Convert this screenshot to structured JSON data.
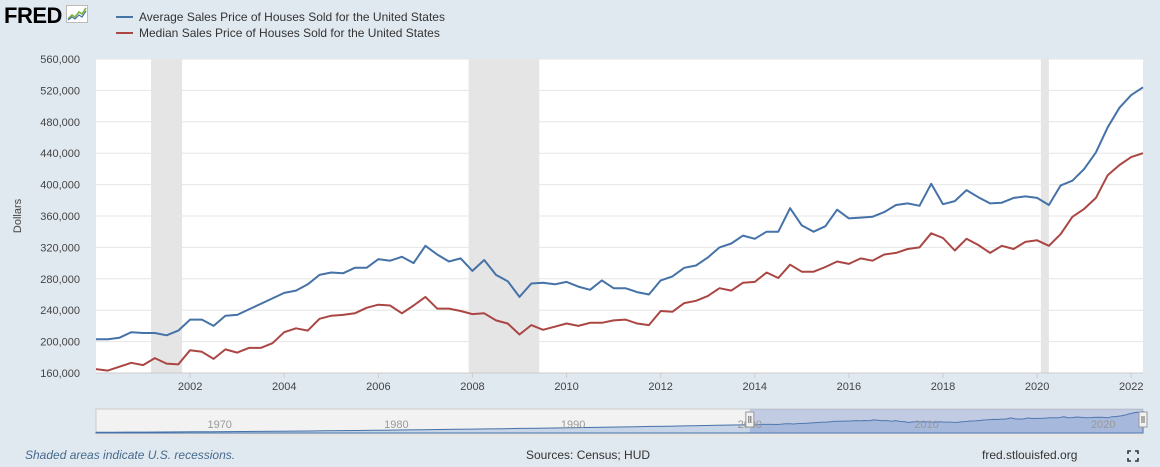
{
  "header": {
    "logo_text": "FRED",
    "logo_icon": "fred-chart-icon"
  },
  "footer": {
    "recession_note": "Shaded areas indicate U.S. recessions.",
    "sources": "Sources: Census; HUD",
    "site": "fred.stlouisfed.org",
    "fullscreen_icon": "fullscreen-icon"
  },
  "colors": {
    "average": "#4572a7",
    "median": "#aa4643",
    "recession": "#e5e5e5",
    "grid": "#e6e6e6",
    "navigator_fill": "#a6bde0",
    "navigator_line": "#4572a7"
  },
  "chart_data": {
    "type": "line",
    "ylabel": "Dollars",
    "ylim": [
      160000,
      560000
    ],
    "y_ticks": [
      160000,
      200000,
      240000,
      280000,
      320000,
      360000,
      400000,
      440000,
      480000,
      520000,
      560000
    ],
    "y_tick_labels": [
      "160,000",
      "200,000",
      "240,000",
      "280,000",
      "320,000",
      "360,000",
      "400,000",
      "440,000",
      "480,000",
      "520,000",
      "560,000"
    ],
    "xlim": [
      2000.0,
      2022.25
    ],
    "x_ticks": [
      2002,
      2004,
      2006,
      2008,
      2010,
      2012,
      2014,
      2016,
      2018,
      2020,
      2022
    ],
    "x_tick_labels": [
      "2002",
      "2004",
      "2006",
      "2008",
      "2010",
      "2012",
      "2014",
      "2016",
      "2018",
      "2020",
      "2022"
    ],
    "recessions": [
      [
        2001.17,
        2001.83
      ],
      [
        2007.92,
        2009.42
      ],
      [
        2020.08,
        2020.25
      ]
    ],
    "navigator": {
      "labels": [
        "1970",
        "1980",
        "1990",
        "2000",
        "2010",
        "2020"
      ],
      "range": [
        1963,
        2022.25
      ],
      "selected": [
        2000.0,
        2022.25
      ]
    },
    "series": [
      {
        "name": "Average Sales Price of Houses Sold for the United States",
        "x": [
          2000.0,
          2000.25,
          2000.5,
          2000.75,
          2001.0,
          2001.25,
          2001.5,
          2001.75,
          2002.0,
          2002.25,
          2002.5,
          2002.75,
          2003.0,
          2003.25,
          2003.5,
          2003.75,
          2004.0,
          2004.25,
          2004.5,
          2004.75,
          2005.0,
          2005.25,
          2005.5,
          2005.75,
          2006.0,
          2006.25,
          2006.5,
          2006.75,
          2007.0,
          2007.25,
          2007.5,
          2007.75,
          2008.0,
          2008.25,
          2008.5,
          2008.75,
          2009.0,
          2009.25,
          2009.5,
          2009.75,
          2010.0,
          2010.25,
          2010.5,
          2010.75,
          2011.0,
          2011.25,
          2011.5,
          2011.75,
          2012.0,
          2012.25,
          2012.5,
          2012.75,
          2013.0,
          2013.25,
          2013.5,
          2013.75,
          2014.0,
          2014.25,
          2014.5,
          2014.75,
          2015.0,
          2015.25,
          2015.5,
          2015.75,
          2016.0,
          2016.25,
          2016.5,
          2016.75,
          2017.0,
          2017.25,
          2017.5,
          2017.75,
          2018.0,
          2018.25,
          2018.5,
          2018.75,
          2019.0,
          2019.25,
          2019.5,
          2019.75,
          2020.0,
          2020.25,
          2020.5,
          2020.75,
          2021.0,
          2021.25,
          2021.5,
          2021.75,
          2022.0,
          2022.25
        ],
        "values": [
          203000,
          203000,
          205000,
          212000,
          211000,
          211000,
          208000,
          214000,
          228000,
          228000,
          220000,
          233000,
          234000,
          241000,
          248000,
          255000,
          262000,
          265000,
          273000,
          285000,
          288000,
          287000,
          294000,
          294000,
          305000,
          303000,
          308000,
          300000,
          322000,
          311000,
          302000,
          306000,
          290000,
          304000,
          285000,
          277000,
          257000,
          274000,
          275000,
          273000,
          276000,
          270000,
          266000,
          278000,
          268000,
          268000,
          263000,
          260000,
          278000,
          283000,
          294000,
          297000,
          307000,
          320000,
          325000,
          335000,
          331000,
          340000,
          340000,
          370000,
          348000,
          340000,
          347000,
          368000,
          357000,
          358000,
          359000,
          365000,
          374000,
          376000,
          373000,
          401000,
          375000,
          379000,
          393000,
          384000,
          376000,
          377000,
          383000,
          385000,
          383000,
          374000,
          399000,
          405000,
          420000,
          441000,
          473000,
          498000,
          514000,
          524000
        ]
      },
      {
        "name": "Median Sales Price of Houses Sold for the United States",
        "x": [
          2000.0,
          2000.25,
          2000.5,
          2000.75,
          2001.0,
          2001.25,
          2001.5,
          2001.75,
          2002.0,
          2002.25,
          2002.5,
          2002.75,
          2003.0,
          2003.25,
          2003.5,
          2003.75,
          2004.0,
          2004.25,
          2004.5,
          2004.75,
          2005.0,
          2005.25,
          2005.5,
          2005.75,
          2006.0,
          2006.25,
          2006.5,
          2006.75,
          2007.0,
          2007.25,
          2007.5,
          2007.75,
          2008.0,
          2008.25,
          2008.5,
          2008.75,
          2009.0,
          2009.25,
          2009.5,
          2009.75,
          2010.0,
          2010.25,
          2010.5,
          2010.75,
          2011.0,
          2011.25,
          2011.5,
          2011.75,
          2012.0,
          2012.25,
          2012.5,
          2012.75,
          2013.0,
          2013.25,
          2013.5,
          2013.75,
          2014.0,
          2014.25,
          2014.5,
          2014.75,
          2015.0,
          2015.25,
          2015.5,
          2015.75,
          2016.0,
          2016.25,
          2016.5,
          2016.75,
          2017.0,
          2017.25,
          2017.5,
          2017.75,
          2018.0,
          2018.25,
          2018.5,
          2018.75,
          2019.0,
          2019.25,
          2019.5,
          2019.75,
          2020.0,
          2020.25,
          2020.5,
          2020.75,
          2021.0,
          2021.25,
          2021.5,
          2021.75,
          2022.0,
          2022.25
        ],
        "values": [
          165000,
          163000,
          168000,
          173000,
          170000,
          179000,
          172000,
          171000,
          189000,
          187000,
          178000,
          190000,
          186000,
          192000,
          192000,
          198000,
          212000,
          217000,
          214000,
          229000,
          233000,
          234000,
          236000,
          243000,
          247000,
          246000,
          236000,
          246000,
          257000,
          242000,
          242000,
          239000,
          235000,
          236000,
          227000,
          223000,
          209000,
          221000,
          215000,
          219000,
          223000,
          220000,
          224000,
          224000,
          227000,
          228000,
          223000,
          221000,
          239000,
          238000,
          249000,
          252000,
          258000,
          268000,
          265000,
          275000,
          276000,
          288000,
          281000,
          298000,
          289000,
          289000,
          295000,
          302000,
          299000,
          306000,
          303000,
          311000,
          313000,
          318000,
          320000,
          338000,
          332000,
          316000,
          331000,
          323000,
          313000,
          322000,
          318000,
          327000,
          329000,
          322000,
          337000,
          359000,
          369000,
          383000,
          412000,
          425000,
          435000,
          440000
        ]
      }
    ]
  }
}
